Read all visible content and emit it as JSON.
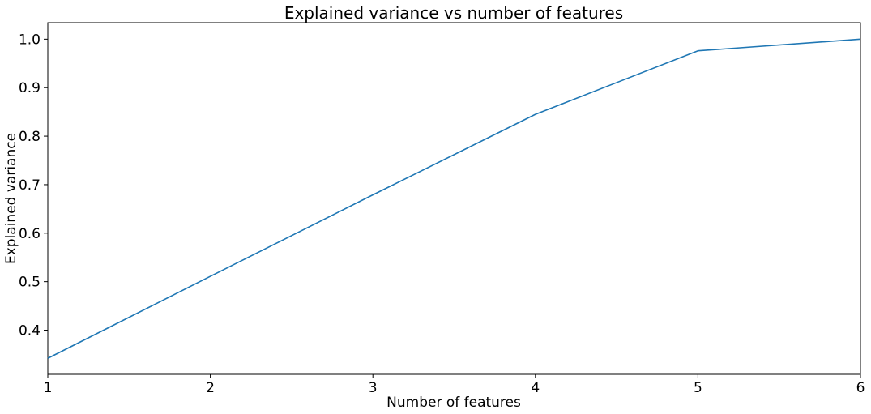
{
  "chart_data": {
    "type": "line",
    "title": "Explained variance vs number of features",
    "xlabel": "Number of features",
    "ylabel": "Explained variance",
    "x": [
      1,
      2,
      3,
      4,
      5,
      6
    ],
    "series": [
      {
        "values": [
          0.342,
          0.511,
          0.679,
          0.845,
          0.976,
          1.0
        ],
        "color": "#1f77b4"
      }
    ],
    "xlim": [
      1,
      6
    ],
    "ylim": [
      0.309,
      1.034
    ],
    "xticks": [
      "1",
      "2",
      "3",
      "4",
      "5",
      "6"
    ],
    "yticks": [
      "0.4",
      "0.5",
      "0.6",
      "0.7",
      "0.8",
      "0.9",
      "1.0"
    ],
    "grid": false,
    "legend": "none"
  }
}
